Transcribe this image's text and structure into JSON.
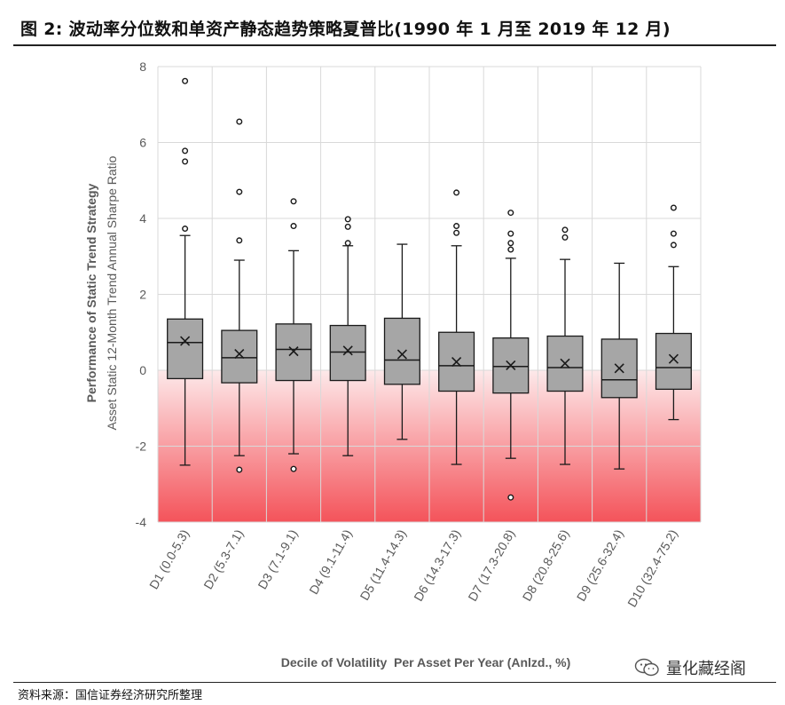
{
  "page": {
    "title": "图 2:  波动率分位数和单资产静态趋势策略夏普比(1990 年 1 月至 2019 年 12 月)",
    "footer": "资料来源：国信证券经济研究所整理",
    "watermark": "量化藏经阁"
  },
  "colors": {
    "box_fill": "#a6a6a6",
    "box_stroke": "#1a1a1a",
    "negative_zone_top": "#fde9ea",
    "negative_zone_bottom": "#f4535a",
    "grid": "#d9d9d9",
    "axis_text": "#595959"
  },
  "chart_data": {
    "type": "box",
    "title": "",
    "xlabel": "Decile of Volatility  Per Asset Per Year (Anlzd., %)",
    "ylabel_line1": "Performance of Static Trend Strategy",
    "ylabel_line2": "Asset Static 12-Month Trend Annual Sharpe Ratio",
    "ylim": [
      -4,
      8
    ],
    "yticks": [
      -4,
      -2,
      0,
      2,
      4,
      6,
      8
    ],
    "ytick_labels": [
      "-4",
      "-2",
      "0",
      "2",
      "4",
      "6",
      "8"
    ],
    "shaded_region": {
      "from": -4,
      "to": 0,
      "meaning": "negative Sharpe ratio"
    },
    "categories": [
      "D1 (0.0-5.3)",
      "D2 (5.3-7.1)",
      "D3 (7.1-9.1)",
      "D4 (9.1-11.4)",
      "D5 (11.4-14.3)",
      "D6 (14.3-17.3)",
      "D7 (17.3-20.8)",
      "D8 (20.8-25.6)",
      "D9 (25.6-32.4)",
      "D10 (32.4-75.2)"
    ],
    "boxes": [
      {
        "whisker_low": -2.5,
        "q1": -0.22,
        "median": 0.73,
        "q3": 1.35,
        "whisker_high": 3.55,
        "mean": 0.77,
        "outliers": [
          3.73,
          5.5,
          5.78,
          7.62
        ]
      },
      {
        "whisker_low": -2.25,
        "q1": -0.33,
        "median": 0.33,
        "q3": 1.05,
        "whisker_high": 2.9,
        "mean": 0.43,
        "outliers": [
          -2.62,
          3.42,
          4.7,
          6.55
        ]
      },
      {
        "whisker_low": -2.2,
        "q1": -0.27,
        "median": 0.55,
        "q3": 1.22,
        "whisker_high": 3.15,
        "mean": 0.5,
        "outliers": [
          -2.6,
          3.8,
          4.45
        ]
      },
      {
        "whisker_low": -2.25,
        "q1": -0.27,
        "median": 0.48,
        "q3": 1.18,
        "whisker_high": 3.28,
        "mean": 0.52,
        "outliers": [
          3.35,
          3.78,
          3.98
        ]
      },
      {
        "whisker_low": -1.82,
        "q1": -0.37,
        "median": 0.27,
        "q3": 1.37,
        "whisker_high": 3.32,
        "mean": 0.42,
        "outliers": []
      },
      {
        "whisker_low": -2.48,
        "q1": -0.55,
        "median": 0.12,
        "q3": 1.0,
        "whisker_high": 3.28,
        "mean": 0.22,
        "outliers": [
          3.62,
          3.8,
          4.68
        ]
      },
      {
        "whisker_low": -2.32,
        "q1": -0.6,
        "median": 0.1,
        "q3": 0.85,
        "whisker_high": 2.95,
        "mean": 0.13,
        "outliers": [
          -3.35,
          3.18,
          3.35,
          3.6,
          4.15
        ]
      },
      {
        "whisker_low": -2.48,
        "q1": -0.55,
        "median": 0.07,
        "q3": 0.9,
        "whisker_high": 2.92,
        "mean": 0.18,
        "outliers": [
          3.5,
          3.7
        ]
      },
      {
        "whisker_low": -2.6,
        "q1": -0.72,
        "median": -0.25,
        "q3": 0.82,
        "whisker_high": 2.82,
        "mean": 0.05,
        "outliers": []
      },
      {
        "whisker_low": -1.3,
        "q1": -0.5,
        "median": 0.07,
        "q3": 0.97,
        "whisker_high": 2.73,
        "mean": 0.3,
        "outliers": [
          3.3,
          3.6,
          4.28
        ]
      }
    ]
  }
}
